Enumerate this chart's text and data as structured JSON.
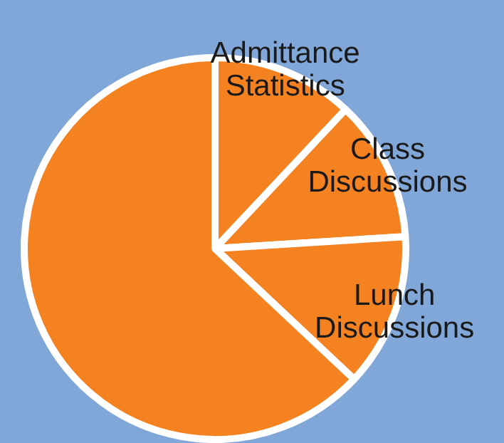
{
  "chart_data": {
    "type": "pie",
    "categories": [
      "Admittance Statistics",
      "Class Discussions",
      "Lunch Discussions",
      null
    ],
    "values": [
      12,
      12,
      13,
      63
    ],
    "colors": [
      "#f58220",
      "#f58220",
      "#f58220",
      "#f58220"
    ],
    "legend": false
  }
}
